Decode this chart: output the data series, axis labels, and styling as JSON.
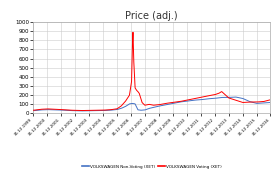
{
  "title": "Price (adj.)",
  "title_fontsize": 7,
  "ylim": [
    0,
    1000
  ],
  "yticks": [
    0,
    100,
    200,
    300,
    400,
    500,
    600,
    700,
    800,
    900,
    1000
  ],
  "legend_labels": [
    "VOLKSWAGEN Non-Voting (XET)",
    "VOLKSWAGEN Voting (XET)"
  ],
  "legend_colors": [
    "#4472C4",
    "#FF0000"
  ],
  "bg_color": "#FFFFFF",
  "grid_color": "#CCCCCC",
  "xlabel_dates": [
    "31.12.1999",
    "31.12.2000",
    "31.12.2001",
    "31.12.2002",
    "31.12.2003",
    "31.12.2004",
    "31.12.2005",
    "31.12.2006",
    "31.12.2007",
    "31.12.2008",
    "31.12.2009",
    "31.12.2010",
    "31.12.2011",
    "31.12.2012",
    "31.12.2013",
    "31.12.2014",
    "31.12.2015",
    "31.12.2016"
  ],
  "non_voting_x": [
    0,
    0.5,
    1,
    1.5,
    2,
    2.5,
    3,
    3.5,
    4,
    4.5,
    5,
    5.5,
    6,
    6.3,
    6.6,
    6.9,
    7.1,
    7.3,
    7.5,
    7.7,
    8,
    8.3,
    8.6,
    9,
    9.5,
    10,
    10.5,
    11,
    11.5,
    12,
    12.5,
    13,
    13.5,
    14,
    14.5,
    15,
    15.5,
    16,
    16.5,
    17
  ],
  "non_voting_y": [
    30,
    38,
    42,
    40,
    38,
    33,
    30,
    28,
    30,
    32,
    32,
    35,
    42,
    55,
    75,
    105,
    110,
    105,
    40,
    35,
    38,
    55,
    65,
    80,
    95,
    110,
    125,
    135,
    145,
    150,
    160,
    165,
    175,
    175,
    180,
    165,
    130,
    110,
    115,
    120
  ],
  "voting_x": [
    0,
    0.5,
    1,
    1.5,
    2,
    2.5,
    3,
    3.5,
    4,
    4.5,
    5,
    5.5,
    6,
    6.3,
    6.6,
    6.9,
    7.05,
    7.1,
    7.15,
    7.2,
    7.3,
    7.4,
    7.5,
    7.6,
    7.7,
    7.8,
    8,
    8.3,
    8.6,
    9,
    9.5,
    10,
    10.5,
    11,
    11.5,
    12,
    12.3,
    12.6,
    13,
    13.3,
    13.5,
    14,
    14.5,
    15,
    15.5,
    16,
    16.5,
    17
  ],
  "voting_y": [
    35,
    45,
    50,
    47,
    42,
    37,
    34,
    32,
    34,
    36,
    36,
    40,
    50,
    80,
    130,
    200,
    350,
    700,
    900,
    600,
    280,
    255,
    240,
    220,
    170,
    120,
    90,
    100,
    90,
    95,
    110,
    120,
    130,
    145,
    160,
    175,
    185,
    195,
    205,
    220,
    240,
    170,
    145,
    120,
    125,
    125,
    130,
    150
  ]
}
